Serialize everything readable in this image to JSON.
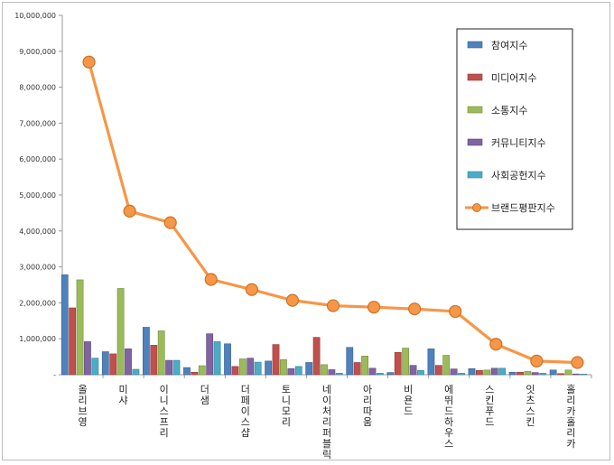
{
  "chart_data": {
    "type": "bar",
    "title": "",
    "xlabel": "",
    "ylabel": "",
    "ylim": [
      0,
      10000000
    ],
    "yticks": [
      0,
      1000000,
      2000000,
      3000000,
      4000000,
      5000000,
      6000000,
      7000000,
      8000000,
      9000000,
      10000000
    ],
    "ytick_labels": [
      "-",
      "1,000,000",
      "2,000,000",
      "3,000,000",
      "4,000,000",
      "5,000,000",
      "6,000,000",
      "7,000,000",
      "8,000,000",
      "9,000,000",
      "10,000,000"
    ],
    "grid": false,
    "legend_position": "top-right",
    "categories": [
      "올리브영",
      "미샤",
      "이니스프리",
      "더샘",
      "더페이스샵",
      "토니모리",
      "네이처리퍼블릭",
      "아리따움",
      "비욘드",
      "에뛰드하우스",
      "스킨푸드",
      "잇츠스킨",
      "홀리카홀리카"
    ],
    "series": [
      {
        "name": "참여지수",
        "type": "bar",
        "color": "#4F81BD",
        "values": [
          2780000,
          640000,
          1320000,
          200000,
          860000,
          380000,
          340000,
          760000,
          60000,
          720000,
          170000,
          70000,
          130000
        ]
      },
      {
        "name": "미디어지수",
        "type": "bar",
        "color": "#C0504D",
        "values": [
          1860000,
          580000,
          820000,
          70000,
          230000,
          840000,
          1040000,
          340000,
          620000,
          260000,
          120000,
          70000,
          30000
        ]
      },
      {
        "name": "소통지수",
        "type": "bar",
        "color": "#9BBB59",
        "values": [
          2640000,
          2400000,
          1220000,
          250000,
          440000,
          420000,
          280000,
          520000,
          740000,
          540000,
          130000,
          90000,
          130000
        ]
      },
      {
        "name": "커뮤니티지수",
        "type": "bar",
        "color": "#8064A2",
        "values": [
          920000,
          720000,
          400000,
          1140000,
          460000,
          170000,
          140000,
          180000,
          260000,
          160000,
          180000,
          60000,
          20000
        ]
      },
      {
        "name": "사회공헌지수",
        "type": "bar",
        "color": "#4BACC6",
        "values": [
          460000,
          150000,
          400000,
          920000,
          350000,
          230000,
          40000,
          40000,
          120000,
          40000,
          180000,
          40000,
          10000
        ]
      },
      {
        "name": "브랜드평판지수",
        "type": "line",
        "color": "#F79646",
        "values": [
          8700000,
          4550000,
          4230000,
          2650000,
          2370000,
          2070000,
          1920000,
          1880000,
          1830000,
          1760000,
          850000,
          380000,
          340000
        ]
      }
    ]
  }
}
